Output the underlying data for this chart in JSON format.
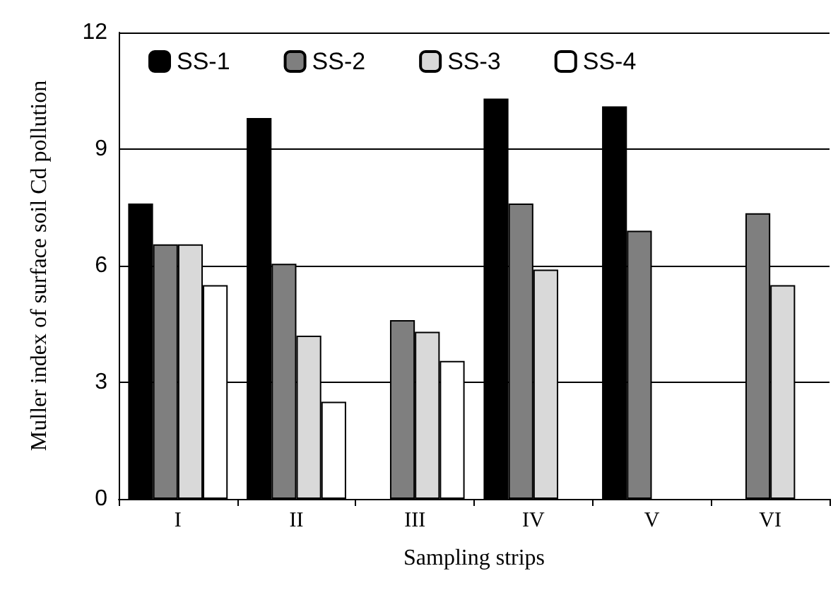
{
  "chart_data": {
    "type": "bar",
    "xlabel": "Sampling strips",
    "ylabel": "Muller index of surface soil Cd pollution",
    "categories": [
      "I",
      "II",
      "III",
      "IV",
      "V",
      "VI"
    ],
    "series": [
      {
        "name": "SS-1",
        "color": "#000000",
        "values": [
          7.6,
          9.8,
          null,
          10.3,
          10.1,
          null
        ]
      },
      {
        "name": "SS-2",
        "color": "#7f7f7f",
        "values": [
          6.55,
          6.05,
          4.6,
          7.6,
          6.9,
          7.35
        ]
      },
      {
        "name": "SS-3",
        "color": "#d9d9d9",
        "values": [
          6.55,
          4.2,
          4.3,
          5.9,
          null,
          5.5
        ]
      },
      {
        "name": "SS-4",
        "color": "#ffffff",
        "values": [
          5.5,
          2.5,
          3.55,
          null,
          null,
          null
        ]
      }
    ],
    "ylim": [
      0,
      12
    ],
    "yticks": [
      0,
      3,
      6,
      9,
      12
    ],
    "grid": "y",
    "legend": "top"
  }
}
